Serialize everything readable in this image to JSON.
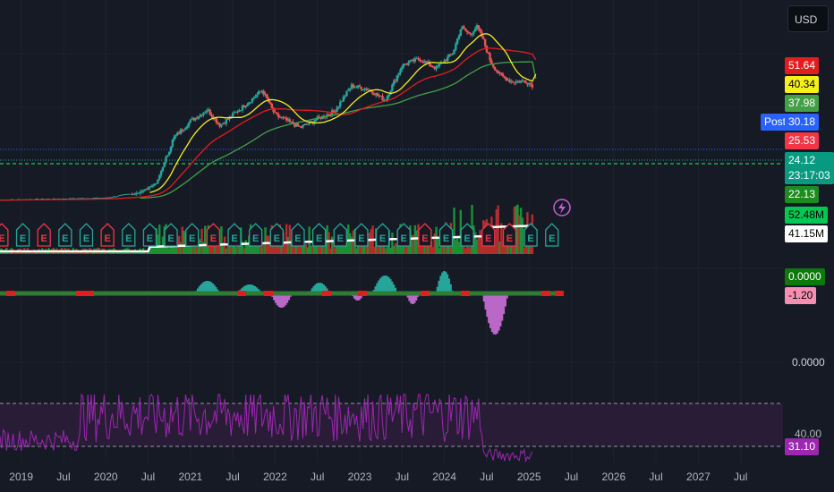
{
  "currency_button": "USD",
  "price_tags": {
    "ma_red": {
      "value": "51.64",
      "bg": "#e01e1e",
      "color": "#ffffff"
    },
    "ma_yellow": {
      "value": "40.34",
      "bg": "#f5ef1e",
      "color": "#000000"
    },
    "ma_green": {
      "value": "37.98",
      "bg": "#43a047",
      "color": "#ffffff"
    },
    "post_label": "Post",
    "post_price": {
      "value": "30.18",
      "bg": "#2962ff",
      "color": "#ffffff"
    },
    "close_red": {
      "value": "25.53",
      "bg": "#f23645",
      "color": "#ffffff"
    },
    "last": {
      "value": "24.12",
      "countdown": "23:17:03",
      "bg": "#089981",
      "color": "#ffffff"
    },
    "green_level": {
      "value": "22.13",
      "bg": "#1e8b1e",
      "color": "#ffffff"
    },
    "volume": {
      "value": "52.48M",
      "bg": "#00c853",
      "color": "#000000"
    },
    "volume_ma": {
      "value": "41.15M",
      "bg": "#ffffff",
      "color": "#000000"
    },
    "macd_zero": {
      "value": "0.0000",
      "bg": "#0b7a0b",
      "color": "#ffffff"
    },
    "macd_hist": {
      "value": "-1.20",
      "bg": "#f48fb1",
      "color": "#000000"
    },
    "pane3_zero": {
      "value": "0.0000"
    },
    "rsi_level": {
      "value": "40.00"
    },
    "rsi": {
      "value": "31.10",
      "bg": "#9c27b0",
      "color": "#ffffff"
    }
  },
  "earnings_marker_letter": "E",
  "chart_data": {
    "type": "candlestick",
    "title": "",
    "x_ticks": [
      "2019",
      "Jul",
      "2020",
      "Jul",
      "2021",
      "Jul",
      "2022",
      "Jul",
      "2023",
      "Jul",
      "2024",
      "Jul",
      "2025",
      "Jul",
      "2026",
      "Jul",
      "2027",
      "Jul"
    ],
    "x_range": [
      2018.75,
      2028.0
    ],
    "price_axis_visible": [
      "51.64",
      "40.34",
      "37.98",
      "30.18",
      "25.53",
      "24.12",
      "22.13"
    ],
    "price_points": [
      {
        "t": 2018.75,
        "p": 2.5
      },
      {
        "t": 2020.0,
        "p": 2.6
      },
      {
        "t": 2020.4,
        "p": 2.9
      },
      {
        "t": 2020.6,
        "p": 3.5
      },
      {
        "t": 2020.8,
        "p": 8.5
      },
      {
        "t": 2021.0,
        "p": 12.0
      },
      {
        "t": 2021.2,
        "p": 15.0
      },
      {
        "t": 2021.35,
        "p": 11.0
      },
      {
        "t": 2021.6,
        "p": 15.5
      },
      {
        "t": 2021.85,
        "p": 22.0
      },
      {
        "t": 2022.0,
        "p": 13.5
      },
      {
        "t": 2022.3,
        "p": 10.5
      },
      {
        "t": 2022.5,
        "p": 12.5
      },
      {
        "t": 2022.7,
        "p": 14.5
      },
      {
        "t": 2022.9,
        "p": 24.0
      },
      {
        "t": 2023.1,
        "p": 22.5
      },
      {
        "t": 2023.3,
        "p": 18.0
      },
      {
        "t": 2023.5,
        "p": 36.0
      },
      {
        "t": 2023.7,
        "p": 41.0
      },
      {
        "t": 2023.9,
        "p": 34.0
      },
      {
        "t": 2024.1,
        "p": 46.0
      },
      {
        "t": 2024.2,
        "p": 77.0
      },
      {
        "t": 2024.3,
        "p": 66.0
      },
      {
        "t": 2024.38,
        "p": 78.0
      },
      {
        "t": 2024.45,
        "p": 62.0
      },
      {
        "t": 2024.55,
        "p": 38.0
      },
      {
        "t": 2024.65,
        "p": 30.0
      },
      {
        "t": 2024.8,
        "p": 26.0
      },
      {
        "t": 2024.95,
        "p": 26.5
      },
      {
        "t": 2025.05,
        "p": 24.12
      }
    ],
    "series": [
      {
        "name": "",
        "color": "#e01e1e",
        "last": 51.64
      },
      {
        "name": "",
        "color": "#f5ef1e",
        "last": 40.34
      },
      {
        "name": "",
        "color": "#43a047",
        "last": 37.98
      }
    ],
    "macd": {
      "last_histogram": -1.2,
      "zero": 0.0
    },
    "rsi": {
      "last": 31.1,
      "lower_band": 40.0
    }
  }
}
